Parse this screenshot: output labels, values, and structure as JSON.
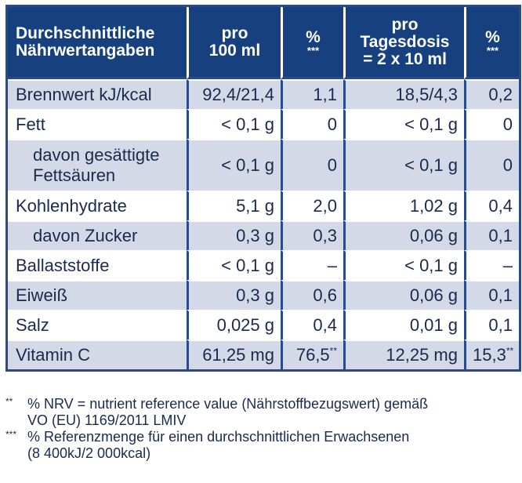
{
  "header": {
    "col1": [
      "Durchschnittliche",
      "Nährwertangaben"
    ],
    "col2": [
      "pro",
      "100 ml"
    ],
    "col3": "%",
    "col3_mark": "***",
    "col4": [
      "pro",
      "Tagesdosis",
      "= 2 x 10 ml"
    ],
    "col5": "%",
    "col5_mark": "***"
  },
  "rows": [
    {
      "name": [
        "Brennwert kJ/kcal"
      ],
      "per100": "92,4/21,4",
      "pct1": "1,1",
      "perDose": "18,5/4,3",
      "pct2": "0,2",
      "shaded": true
    },
    {
      "name": [
        "Fett"
      ],
      "per100": "< 0,1 g",
      "pct1": "0",
      "perDose": "< 0,1 g",
      "pct2": "0",
      "shaded": false
    },
    {
      "name": [
        "davon gesättigte",
        "Fettsäuren"
      ],
      "indent": true,
      "tall": true,
      "per100": "< 0,1 g",
      "pct1": "0",
      "perDose": "< 0,1 g",
      "pct2": "0",
      "shaded": true
    },
    {
      "name": [
        "Kohlenhydrate"
      ],
      "per100": "5,1 g",
      "pct1": "2,0",
      "perDose": "1,02 g",
      "pct2": "0,4",
      "shaded": false
    },
    {
      "name": [
        "davon Zucker"
      ],
      "indent": true,
      "per100": "0,3 g",
      "pct1": "0,3",
      "perDose": "0,06 g",
      "pct2": "0,1",
      "shaded": true
    },
    {
      "name": [
        "Ballaststoffe"
      ],
      "per100": "< 0,1 g",
      "pct1": "–",
      "perDose": "< 0,1 g",
      "pct2": "–",
      "shaded": false
    },
    {
      "name": [
        "Eiweiß"
      ],
      "per100": "0,3 g",
      "pct1": "0,6",
      "perDose": "0,06 g",
      "pct2": "0,1",
      "shaded": true
    },
    {
      "name": [
        "Salz"
      ],
      "per100": "0,025 g",
      "pct1": "0,4",
      "perDose": "0,01 g",
      "pct2": "0,1",
      "shaded": false
    },
    {
      "name": [
        "Vitamin C"
      ],
      "per100": "61,25 mg",
      "pct1": "76,5",
      "pct1_mark": "**",
      "perDose": "12,25 mg",
      "pct2": "15,3",
      "pct2_mark": "**",
      "shaded": true
    }
  ],
  "footnotes": [
    {
      "mark": "**",
      "lines": [
        "% NRV = nutrient reference value (Nährstoffbezugswert) gemäß",
        "VO (EU) 1169/2011 LMIV"
      ]
    },
    {
      "mark": "***",
      "lines": [
        "% Referenzmenge für einen durchschnittlichen Erwachsenen",
        "(8 400kJ/2 000kcal)"
      ]
    }
  ],
  "colors": {
    "header_bg": "#17407e",
    "shade": "#d3d9e6",
    "border": "#2a4a8a",
    "text": "#1a2a4f"
  }
}
